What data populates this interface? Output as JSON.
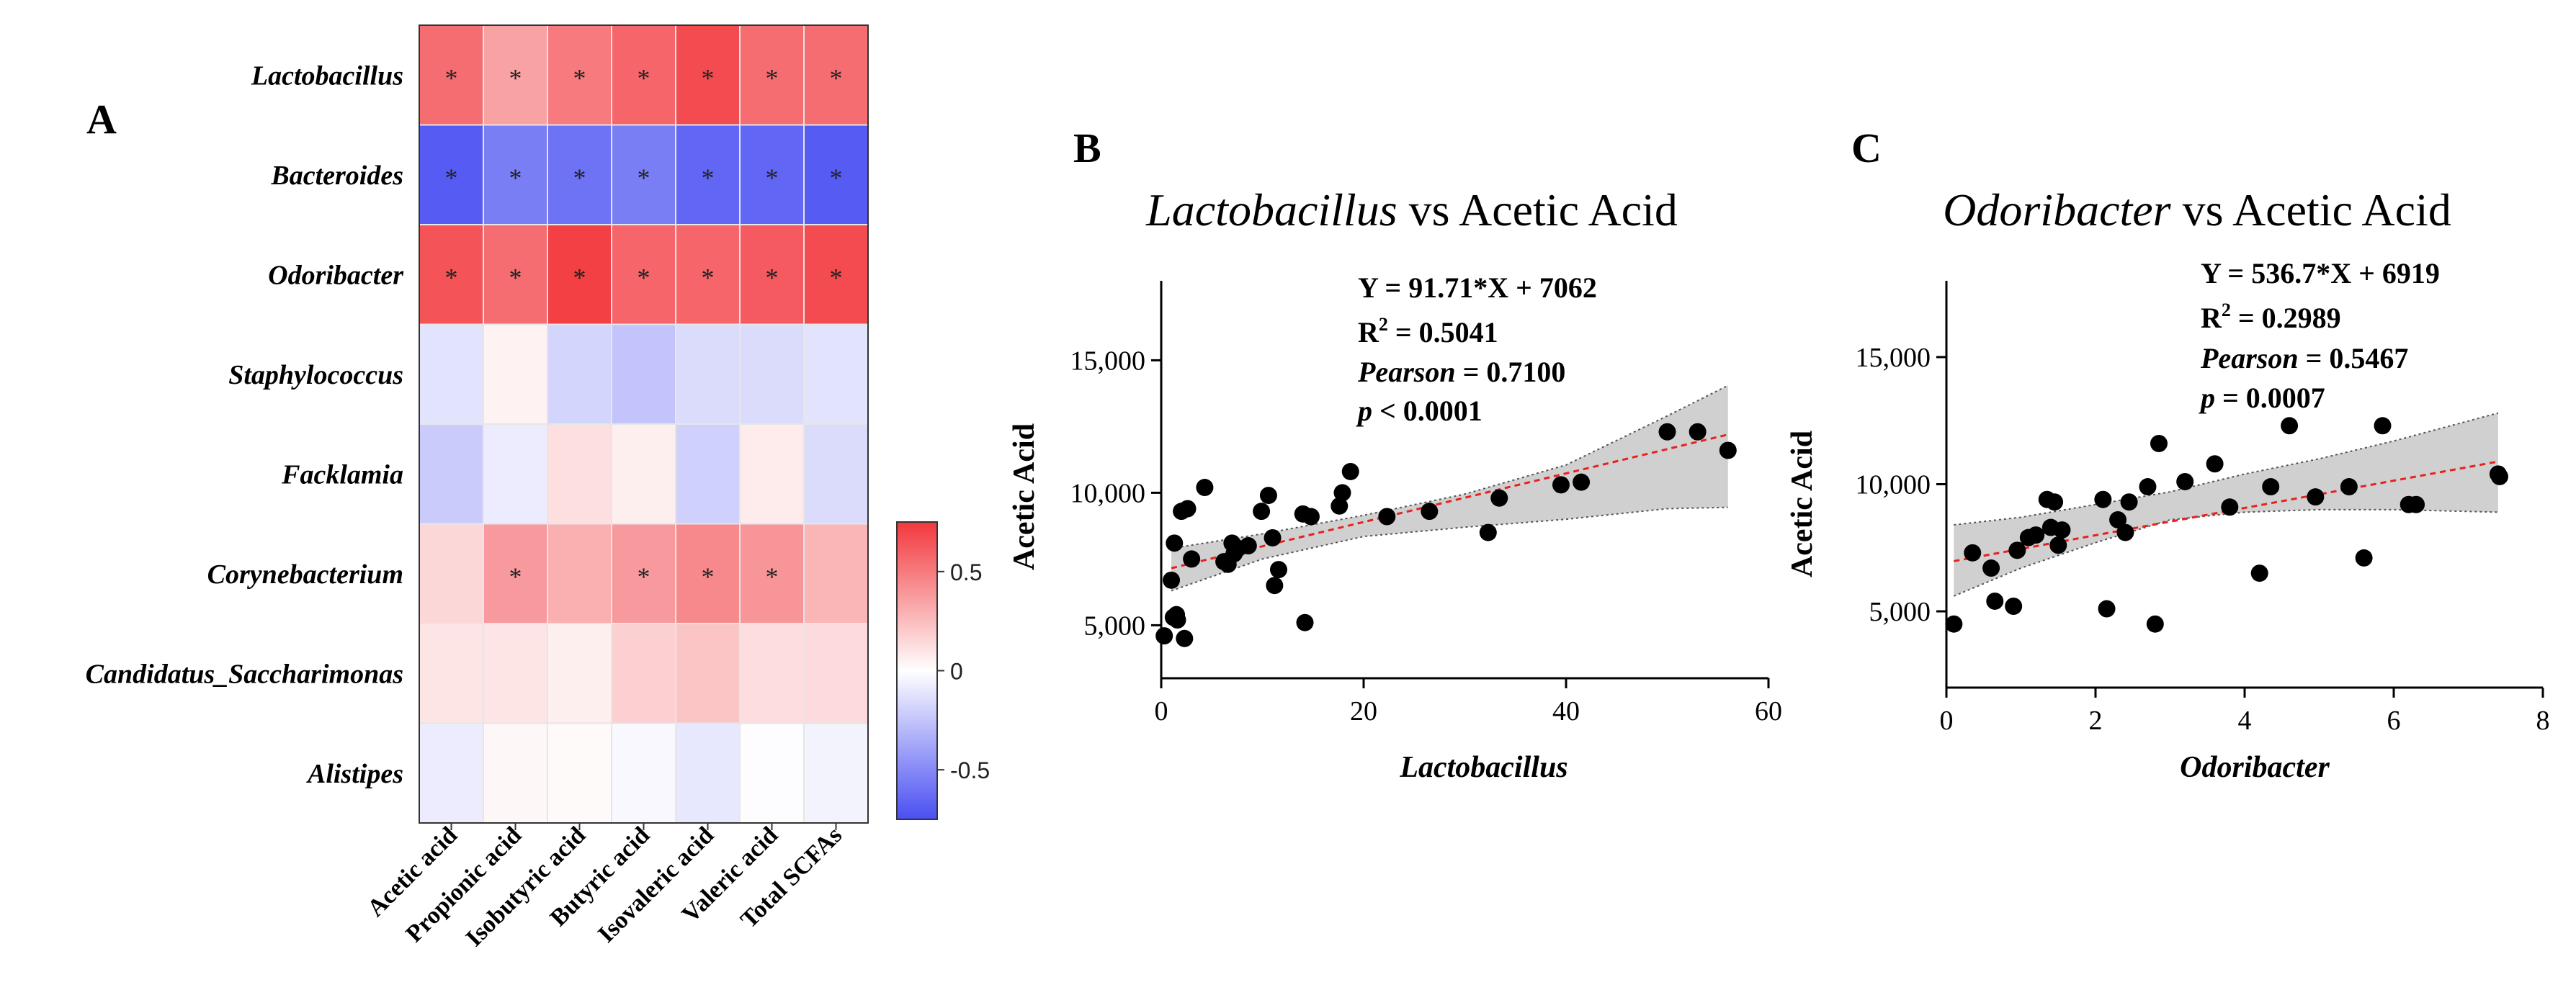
{
  "colors": {
    "positive": "#f2383d",
    "negative": "#4a4ff2",
    "neutral": "#ffffff",
    "regression_line": "#e8211d",
    "ci_band": "#d0d0d0",
    "point": "#000000"
  },
  "panel_a": {
    "label": "A",
    "heatmap": {
      "rows": [
        "Lactobacillus",
        "Bacteroides",
        "Odoribacter",
        "Staphylococcus",
        "Facklamia",
        "Corynebacterium",
        "Candidatus_Saccharimonas",
        "Alistipes"
      ],
      "columns": [
        "Acetic acid",
        "Propionic acid",
        "Isobutyric acid",
        "Butyric acid",
        "Isovaleric acid",
        "Valeric acid",
        "Total SCFAs"
      ],
      "colorbar_ticks": [
        "0.5",
        "0",
        "-0.5"
      ]
    }
  },
  "panel_b": {
    "label": "B",
    "title_italic": "Lactobacillus",
    "title_rest": " vs Acetic Acid",
    "xlabel": "Lactobacillus",
    "ylabel": "Acetic Acid",
    "stat_equation": "Y = 91.71*X + 7062",
    "stat_r2_prefix": "R",
    "stat_r2_sup": "2",
    "stat_r2_value": " = 0.5041",
    "stat_pearson_name": "Pearson",
    "stat_pearson_value": " = 0.7100",
    "stat_p_name": "p",
    "stat_p_value": " < 0.0001"
  },
  "panel_c": {
    "label": "C",
    "title_italic": "Odoribacter",
    "title_rest": " vs Acetic Acid",
    "xlabel": "Odoribacter",
    "ylabel": "Acetic Acid",
    "stat_equation": "Y = 536.7*X + 6919",
    "stat_r2_prefix": "R",
    "stat_r2_sup": "2",
    "stat_r2_value": " = 0.2989",
    "stat_pearson_name": "Pearson",
    "stat_pearson_value": " = 0.5467",
    "stat_p_name": "p",
    "stat_p_value": " = 0.0007"
  },
  "chart_data": [
    {
      "type": "heatmap",
      "title": "",
      "rows": [
        "Lactobacillus",
        "Bacteroides",
        "Odoribacter",
        "Staphylococcus",
        "Facklamia",
        "Corynebacterium",
        "Candidatus_Saccharimonas",
        "Alistipes"
      ],
      "columns": [
        "Acetic acid",
        "Propionic acid",
        "Isobutyric acid",
        "Butyric acid",
        "Isovaleric acid",
        "Valeric acid",
        "Total SCFAs"
      ],
      "values": [
        [
          0.55,
          0.35,
          0.5,
          0.58,
          0.68,
          0.55,
          0.55
        ],
        [
          -0.7,
          -0.55,
          -0.6,
          -0.55,
          -0.65,
          -0.65,
          -0.7
        ],
        [
          0.65,
          0.55,
          0.72,
          0.58,
          0.58,
          0.62,
          0.68
        ],
        [
          -0.12,
          0.05,
          -0.18,
          -0.25,
          -0.15,
          -0.15,
          -0.12
        ],
        [
          -0.22,
          -0.08,
          0.12,
          0.06,
          -0.2,
          0.07,
          -0.15
        ],
        [
          0.15,
          0.38,
          0.3,
          0.38,
          0.45,
          0.4,
          0.28
        ],
        [
          0.1,
          0.1,
          0.06,
          0.18,
          0.22,
          0.13,
          0.14
        ],
        [
          -0.08,
          0.03,
          0.02,
          -0.03,
          -0.1,
          -0.01,
          -0.05
        ]
      ],
      "significance": [
        [
          "*",
          "*",
          "*",
          "*",
          "*",
          "*",
          "*"
        ],
        [
          "*",
          "*",
          "*",
          "*",
          "*",
          "*",
          "*"
        ],
        [
          "*",
          "*",
          "*",
          "*",
          "*",
          "*",
          "*"
        ],
        [
          "",
          "",
          "",
          "",
          "",
          "",
          ""
        ],
        [
          "",
          "",
          "",
          "",
          "",
          "",
          ""
        ],
        [
          "",
          "*",
          "",
          "*",
          "*",
          "*",
          ""
        ],
        [
          "",
          "",
          "",
          "",
          "",
          "",
          ""
        ],
        [
          "",
          "",
          "",
          "",
          "",
          "",
          ""
        ]
      ],
      "color_range": [
        -0.75,
        0.75
      ]
    },
    {
      "type": "scatter",
      "title": "Lactobacillus vs Acetic Acid",
      "xlabel": "Lactobacillus",
      "ylabel": "Acetic Acid",
      "xlim": [
        0,
        60
      ],
      "ylim": [
        3000,
        18000
      ],
      "xticks": [
        0,
        20,
        40,
        60
      ],
      "xtick_labels": [
        "0",
        "20",
        "40",
        "60"
      ],
      "yticks": [
        5000,
        10000,
        15000
      ],
      "ytick_labels": [
        "5,000",
        "10,000",
        "15,000"
      ],
      "fit": {
        "slope": 91.71,
        "intercept": 7062
      },
      "ci_band": {
        "x": [
          1,
          10,
          20,
          30,
          40,
          50,
          56
        ],
        "upper": [
          7900,
          8450,
          9150,
          9950,
          11050,
          12900,
          14050
        ],
        "lower": [
          6300,
          7500,
          8350,
          8700,
          9000,
          9400,
          9450
        ]
      },
      "x": [
        0.3,
        1.0,
        1.2,
        1.3,
        1.5,
        1.6,
        2.0,
        2.3,
        2.6,
        3.0,
        4.3,
        6.2,
        6.6,
        7.0,
        7.2,
        7.6,
        8.6,
        9.9,
        10.6,
        11.0,
        11.2,
        11.6,
        14.0,
        14.2,
        14.8,
        17.6,
        17.9,
        18.7,
        22.3,
        26.5,
        32.3,
        33.4,
        39.5,
        41.5,
        50.0,
        53.0,
        56.0
      ],
      "y": [
        4600,
        6700,
        5300,
        8100,
        5400,
        5200,
        9300,
        4500,
        9400,
        7500,
        10200,
        7400,
        7300,
        8100,
        7700,
        7900,
        8000,
        9300,
        9900,
        8300,
        6500,
        7100,
        9200,
        5100,
        9100,
        9500,
        10000,
        10800,
        9100,
        9300,
        8500,
        9800,
        10300,
        10400,
        12300,
        12300,
        11600
      ]
    },
    {
      "type": "scatter",
      "title": "Odoribacter vs Acetic Acid",
      "xlabel": "Odoribacter",
      "ylabel": "Acetic Acid",
      "xlim": [
        0,
        8
      ],
      "ylim": [
        2000,
        18000
      ],
      "xticks": [
        0,
        2,
        4,
        6,
        8
      ],
      "xtick_labels": [
        "0",
        "2",
        "4",
        "6",
        "8"
      ],
      "yticks": [
        5000,
        10000,
        15000
      ],
      "ytick_labels": [
        "5,000",
        "10,000",
        "15,000"
      ],
      "fit": {
        "slope": 536.7,
        "intercept": 6919
      },
      "ci_band": {
        "x": [
          0.1,
          1,
          2,
          3,
          4,
          5,
          6,
          7.4
        ],
        "upper": [
          8400,
          8700,
          9200,
          9700,
          10400,
          11000,
          11700,
          12800
        ],
        "lower": [
          5600,
          6700,
          7700,
          8600,
          8900,
          9000,
          9000,
          8900
        ]
      },
      "x": [
        0.1,
        0.35,
        0.6,
        0.65,
        0.9,
        0.95,
        1.1,
        1.2,
        1.35,
        1.4,
        1.45,
        1.5,
        1.55,
        2.1,
        2.15,
        2.3,
        2.4,
        2.45,
        2.7,
        2.8,
        2.85,
        3.2,
        3.6,
        3.8,
        4.2,
        4.35,
        4.6,
        4.95,
        5.4,
        5.6,
        5.85,
        6.2,
        6.3,
        7.4,
        7.42
      ],
      "y": [
        4500,
        7300,
        6700,
        5400,
        5200,
        7400,
        7900,
        8000,
        9400,
        8300,
        9300,
        7600,
        8200,
        9400,
        5100,
        8600,
        8100,
        9300,
        9900,
        4500,
        11600,
        10100,
        10800,
        9100,
        6500,
        9900,
        12300,
        9500,
        9900,
        7100,
        12300,
        9200,
        9200,
        10400,
        10300
      ]
    }
  ]
}
